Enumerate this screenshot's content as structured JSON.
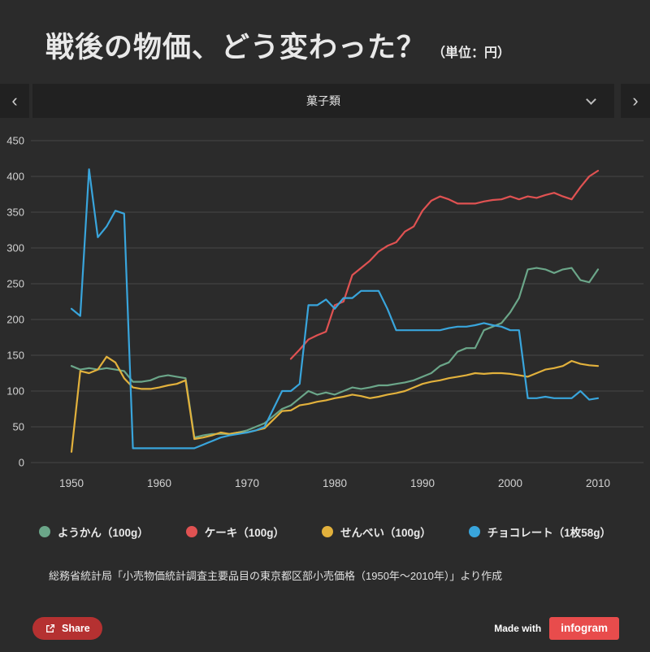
{
  "header": {
    "title": "戦後の物価、どう変わった？",
    "unit_label": "（単位：円）"
  },
  "nav": {
    "category": "菓子類",
    "prev_icon": "‹",
    "next_icon": "›"
  },
  "colors": {
    "background": "#2b2b2b",
    "panel": "#212121",
    "grid": "#474747",
    "text": "#e8e8e8",
    "axis_label": "#d2d2d2",
    "share_button": "#b53131",
    "infogram_logo": "#e84c4c"
  },
  "chart_data": {
    "type": "line",
    "title": "菓子類",
    "unit": "円",
    "x_start": 1950,
    "x_end": 2010,
    "xticks": [
      1950,
      1960,
      1970,
      1980,
      1990,
      2000,
      2010
    ],
    "ylim": [
      0,
      450
    ],
    "ytick_step": 50,
    "grid": true,
    "legend_position": "bottom",
    "series": [
      {
        "name": "ようかん（100g）",
        "color": "#6ba689",
        "values": [
          135,
          130,
          132,
          130,
          132,
          130,
          128,
          113,
          113,
          115,
          120,
          122,
          120,
          118,
          35,
          38,
          40,
          40,
          40,
          42,
          45,
          50,
          55,
          65,
          75,
          80,
          90,
          100,
          95,
          98,
          95,
          100,
          105,
          103,
          105,
          108,
          108,
          110,
          112,
          115,
          120,
          125,
          135,
          140,
          155,
          160,
          160,
          185,
          190,
          195,
          210,
          230,
          270,
          272,
          270,
          265,
          270,
          272,
          255,
          252,
          270
        ]
      },
      {
        "name": "ケーキ（100g）",
        "color": "#e05252",
        "values": [
          null,
          null,
          null,
          null,
          null,
          null,
          null,
          null,
          null,
          null,
          null,
          null,
          null,
          null,
          null,
          null,
          null,
          null,
          null,
          null,
          null,
          null,
          null,
          null,
          null,
          145,
          158,
          172,
          178,
          183,
          220,
          225,
          262,
          272,
          282,
          295,
          303,
          308,
          323,
          330,
          352,
          366,
          372,
          368,
          362,
          362,
          362,
          365,
          367,
          368,
          372,
          368,
          372,
          370,
          374,
          377,
          372,
          368,
          385,
          400,
          408
        ]
      },
      {
        "name": "せんべい（100g）",
        "color": "#e2b13c",
        "values": [
          15,
          128,
          125,
          130,
          148,
          140,
          118,
          105,
          103,
          103,
          105,
          108,
          110,
          115,
          33,
          35,
          38,
          42,
          40,
          42,
          42,
          45,
          48,
          60,
          72,
          73,
          80,
          82,
          85,
          87,
          90,
          92,
          95,
          93,
          90,
          92,
          95,
          97,
          100,
          105,
          110,
          113,
          115,
          118,
          120,
          122,
          125,
          124,
          125,
          125,
          124,
          122,
          120,
          125,
          130,
          132,
          135,
          142,
          138,
          136,
          135
        ]
      },
      {
        "name": "チョコレート（1枚58g）",
        "color": "#39a5dc",
        "values": [
          215,
          205,
          410,
          315,
          330,
          352,
          348,
          20,
          20,
          20,
          20,
          20,
          20,
          20,
          20,
          25,
          30,
          35,
          38,
          40,
          42,
          45,
          50,
          75,
          100,
          100,
          110,
          220,
          220,
          228,
          215,
          230,
          230,
          240,
          240,
          240,
          215,
          185,
          185,
          185,
          185,
          185,
          185,
          188,
          190,
          190,
          192,
          195,
          192,
          190,
          185,
          185,
          90,
          90,
          92,
          90,
          90,
          90,
          100,
          88,
          90
        ]
      }
    ]
  },
  "source": {
    "text": "総務省統計局「小売物価統計調査主要品目の東京都区部小売価格（1950年～2010年）」より作成"
  },
  "footer": {
    "share_label": "Share",
    "made_with": "Made with",
    "logo_text": "infogram"
  }
}
